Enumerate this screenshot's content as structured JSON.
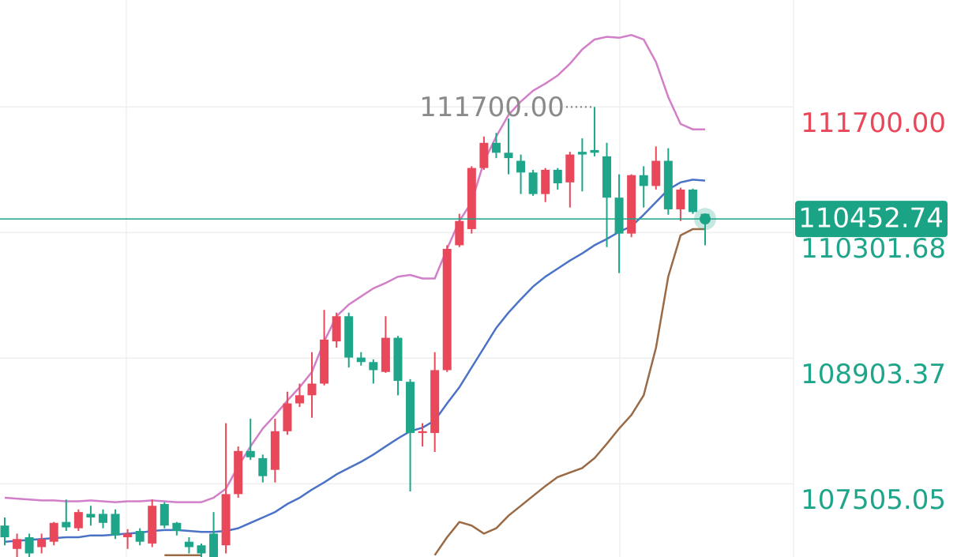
{
  "chart_data": {
    "type": "candlestick",
    "ylim": [
      106690,
      112890
    ],
    "yticks": [
      {
        "value": 111700,
        "label": "111700.00"
      },
      110301.68,
      108903.37,
      107505.05
    ],
    "grid": true,
    "up_color": "#e8485a",
    "down_color": "#1fa589",
    "current_price": 110452.74,
    "current_color": "#1ba386",
    "annotation": {
      "value": 111700,
      "label": "111700.00",
      "index": 48
    },
    "open": [
      107040,
      106780,
      106910,
      106800,
      106860,
      107080,
      107010,
      107170,
      107170,
      107170,
      106910,
      106980,
      106840,
      107280,
      107070,
      106860,
      106820,
      106950,
      106820,
      107390,
      107870,
      107790,
      107660,
      108090,
      108400,
      108490,
      108620,
      109090,
      109370,
      108910,
      108860,
      108750,
      109130,
      108640,
      108070,
      108070,
      108770,
      110160,
      110340,
      111020,
      111300,
      111190,
      111100,
      110970,
      110730,
      111000,
      110860,
      111200,
      111220,
      111150,
      110690,
      110290,
      110940,
      110820,
      111100,
      110560,
      110780,
      110510
    ],
    "high": [
      107130,
      106950,
      106950,
      106950,
      107080,
      107330,
      107220,
      107260,
      107220,
      107220,
      107000,
      107010,
      107330,
      107300,
      107080,
      106910,
      106840,
      107190,
      108180,
      107920,
      108230,
      107830,
      108230,
      108530,
      108620,
      108970,
      109440,
      109410,
      109410,
      108970,
      108890,
      109370,
      109150,
      108670,
      108180,
      108970,
      110160,
      110510,
      111040,
      111370,
      111410,
      111570,
      111170,
      111000,
      111020,
      111020,
      111200,
      111350,
      111700,
      111300,
      110950,
      110950,
      111040,
      111260,
      111240,
      110800,
      110790,
      110510
    ],
    "low": [
      106820,
      106690,
      106690,
      106730,
      106820,
      106980,
      106980,
      107040,
      107010,
      106890,
      106780,
      106820,
      106800,
      107010,
      106930,
      106730,
      106690,
      106690,
      106730,
      107350,
      107770,
      107520,
      107520,
      108050,
      108360,
      108240,
      108600,
      109020,
      108800,
      108820,
      108620,
      108740,
      108490,
      107420,
      107920,
      107860,
      108750,
      110140,
      110290,
      111000,
      111130,
      110950,
      110730,
      110710,
      110640,
      110780,
      110580,
      110760,
      111150,
      110140,
      109850,
      110250,
      110580,
      110780,
      110500,
      110430,
      110510,
      110160
    ],
    "close": [
      106910,
      106890,
      106730,
      106890,
      107070,
      107020,
      107190,
      107130,
      107070,
      106930,
      106950,
      106860,
      107260,
      107040,
      106980,
      106800,
      106730,
      106690,
      107390,
      107870,
      107800,
      107590,
      108090,
      108400,
      108490,
      108620,
      109110,
      109370,
      108910,
      108860,
      108770,
      109130,
      108650,
      108070,
      108090,
      108770,
      110120,
      110430,
      111020,
      111300,
      111190,
      111130,
      110970,
      110730,
      111000,
      110850,
      111170,
      111170,
      111190,
      110690,
      110290,
      110940,
      110820,
      111100,
      110560,
      110780,
      110530,
      110450
    ],
    "upper_band": {
      "color": "#d27fc8",
      "values": [
        107350,
        107340,
        107330,
        107320,
        107320,
        107310,
        107310,
        107320,
        107310,
        107300,
        107310,
        107310,
        107320,
        107310,
        107300,
        107300,
        107300,
        107350,
        107450,
        107700,
        107920,
        108120,
        108270,
        108430,
        108580,
        108750,
        109090,
        109370,
        109500,
        109590,
        109680,
        109740,
        109810,
        109830,
        109790,
        109790,
        110120,
        110430,
        110640,
        111090,
        111370,
        111610,
        111760,
        111880,
        111960,
        112050,
        112180,
        112340,
        112450,
        112480,
        112470,
        112500,
        112450,
        112200,
        111810,
        111510,
        111450,
        111450
      ]
    },
    "middle_band": {
      "color": "#4a72c6",
      "values": [
        106860,
        106870,
        106880,
        106890,
        106900,
        106910,
        106910,
        106930,
        106930,
        106940,
        106950,
        106960,
        106980,
        106990,
        106990,
        106980,
        106970,
        106970,
        106980,
        107010,
        107070,
        107130,
        107190,
        107280,
        107350,
        107440,
        107520,
        107610,
        107680,
        107750,
        107830,
        107920,
        108010,
        108090,
        108130,
        108210,
        108400,
        108580,
        108800,
        109020,
        109240,
        109410,
        109560,
        109700,
        109810,
        109900,
        109990,
        110070,
        110160,
        110230,
        110310,
        110370,
        110500,
        110640,
        110780,
        110860,
        110890,
        110880
      ]
    },
    "lower_band": {
      "color": "#9a6a45",
      "values": [
        null,
        null,
        null,
        null,
        null,
        null,
        null,
        null,
        null,
        null,
        null,
        null,
        null,
        106710,
        106710,
        106710,
        106710,
        null,
        null,
        null,
        null,
        null,
        null,
        null,
        null,
        null,
        null,
        null,
        null,
        null,
        null,
        null,
        null,
        null,
        null,
        106710,
        106910,
        107080,
        107040,
        106950,
        107010,
        107150,
        107260,
        107370,
        107480,
        107580,
        107630,
        107680,
        107790,
        107950,
        108120,
        108270,
        108490,
        109020,
        109810,
        110270,
        110340,
        110340
      ]
    }
  }
}
